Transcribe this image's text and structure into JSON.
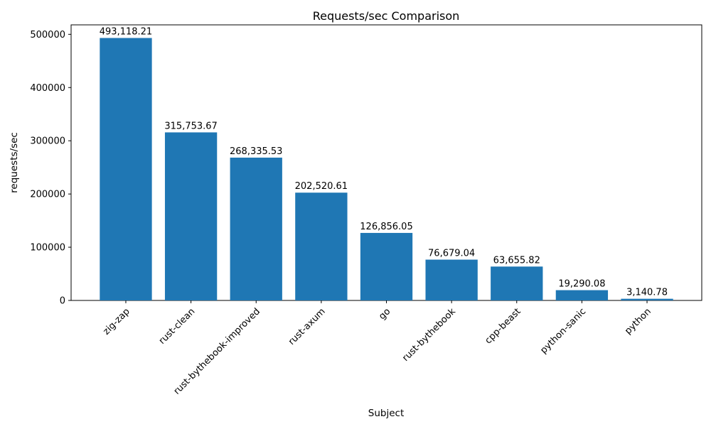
{
  "chart_data": {
    "type": "bar",
    "title": "Requests/sec Comparison",
    "xlabel": "Subject",
    "ylabel": "requests/sec",
    "categories": [
      "zig-zap",
      "rust-clean",
      "rust-bythebook-improved",
      "rust-axum",
      "go",
      "rust-bythebook",
      "cpp-beast",
      "python-sanic",
      "python"
    ],
    "values": [
      493118.21,
      315753.67,
      268335.53,
      202520.61,
      126856.05,
      76679.04,
      63655.82,
      19290.08,
      3140.78
    ],
    "value_labels": [
      "493,118.21",
      "315,753.67",
      "268,335.53",
      "202,520.61",
      "126,856.05",
      "76,679.04",
      "63,655.82",
      "19,290.08",
      "3,140.78"
    ],
    "yticks": [
      0,
      100000,
      200000,
      300000,
      400000,
      500000
    ],
    "ytick_labels": [
      "0",
      "100000",
      "200000",
      "300000",
      "400000",
      "500000"
    ],
    "ylim": [
      0,
      517774
    ],
    "bar_color": "#1f77b4",
    "bar_width_ratio": 0.8,
    "x_tick_rotation_deg": 45,
    "grid": false,
    "legend": null,
    "background_color": "#ffffff",
    "text_color": "#000000"
  }
}
